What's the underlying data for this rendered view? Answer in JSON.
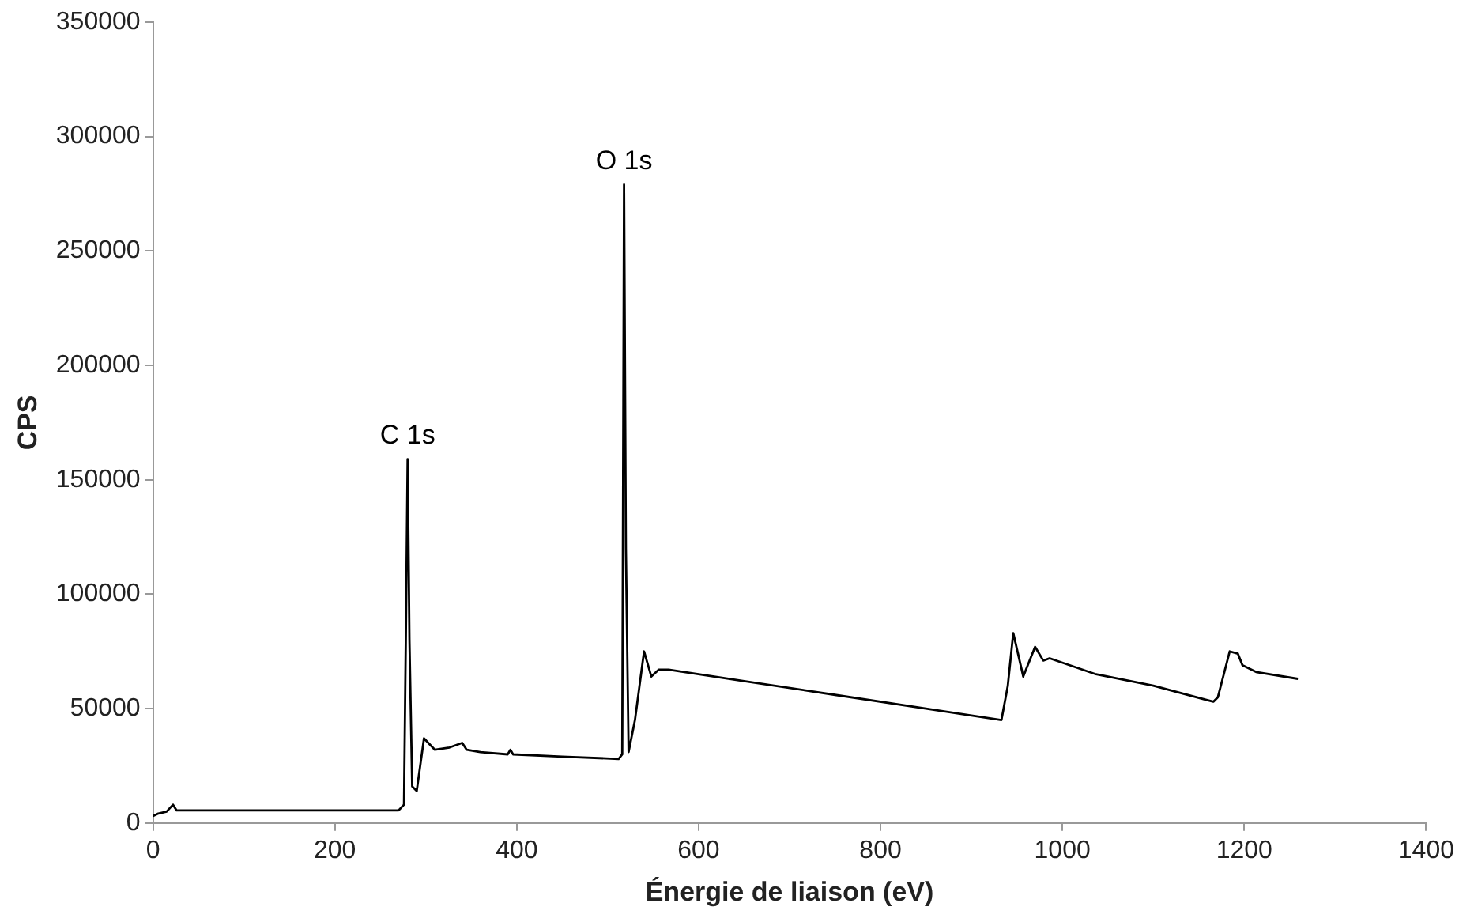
{
  "chart_data": {
    "type": "line",
    "xlabel": "Énergie de liaison (eV)",
    "ylabel": "CPS",
    "x": [
      0,
      5,
      15,
      22,
      26,
      30,
      100,
      200,
      270,
      276,
      278,
      280,
      282,
      285,
      290,
      298,
      310,
      326,
      340,
      345,
      360,
      390,
      393,
      396,
      450,
      512,
      516,
      518,
      520,
      523,
      530,
      540,
      548,
      556,
      567,
      650,
      750,
      850,
      933,
      940,
      946,
      957,
      970,
      979,
      986,
      1037,
      1100,
      1166,
      1171,
      1184,
      1193,
      1198,
      1213,
      1259
    ],
    "series": [
      {
        "color": "#000000",
        "values": [
          3000,
          4000,
          5000,
          8000,
          5500,
          5500,
          5500,
          5500,
          5500,
          8000,
          80000,
          159000,
          80000,
          16000,
          14000,
          37000,
          32000,
          33000,
          35000,
          32000,
          31000,
          30000,
          32000,
          30000,
          29000,
          28000,
          30000,
          279000,
          120000,
          31000,
          45000,
          75000,
          64000,
          67000,
          67000,
          62000,
          56000,
          50000,
          45000,
          60000,
          83000,
          64000,
          77000,
          71000,
          72000,
          65000,
          60000,
          53000,
          55000,
          75000,
          74000,
          69000,
          66000,
          63000
        ]
      }
    ],
    "xlim": [
      0,
      1400
    ],
    "xticks": [
      0,
      200,
      400,
      600,
      800,
      1000,
      1200,
      1400
    ],
    "ylim": [
      0,
      350000
    ],
    "yticks": [
      0,
      50000,
      100000,
      150000,
      200000,
      250000,
      300000,
      350000
    ],
    "grid": false,
    "legend": false,
    "marker": "none",
    "line_style": "solid",
    "annotations": [
      {
        "text": "C 1s",
        "x": 280,
        "y": 159000
      },
      {
        "text": "O 1s",
        "x": 518,
        "y": 279000
      }
    ]
  }
}
